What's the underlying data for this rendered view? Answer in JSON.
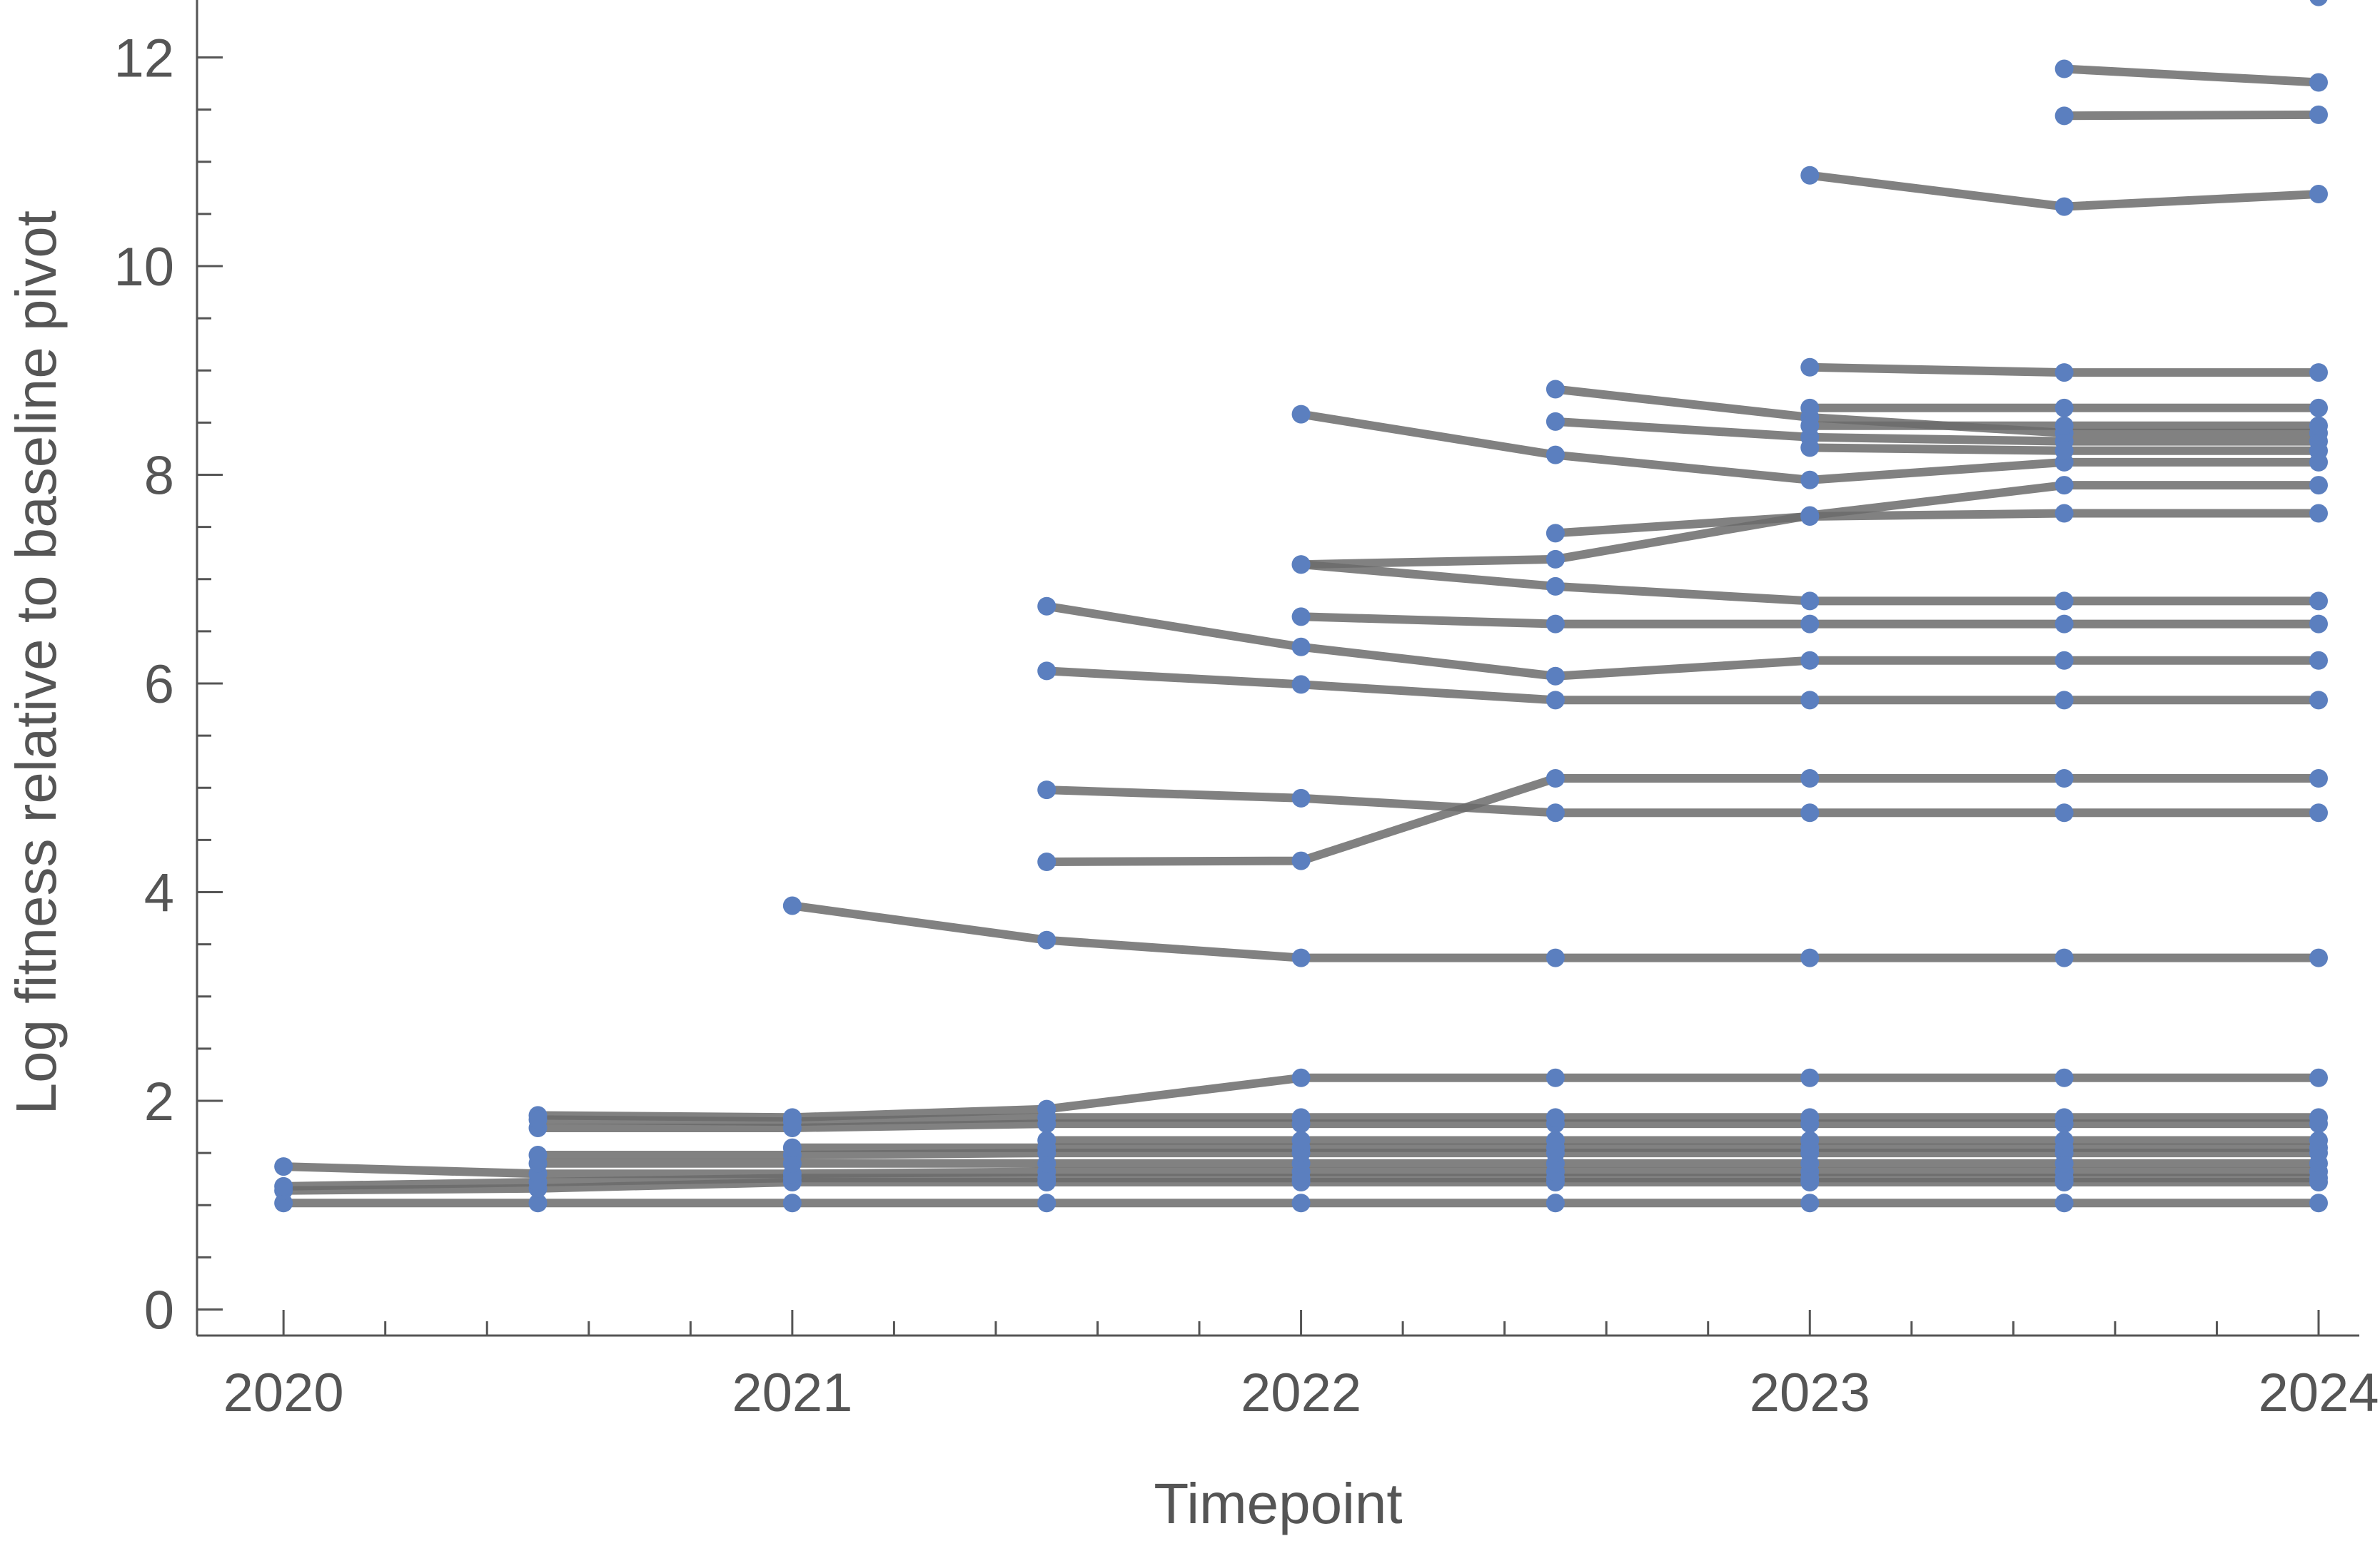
{
  "chart_data": {
    "type": "line",
    "xlabel": "Timepoint",
    "ylabel": "Log fitness relative to baseline pivot",
    "xlim": [
      2019.83,
      2024.08
    ],
    "ylim": [
      -0.25,
      12.55
    ],
    "x_ticks": [
      {
        "value": 2020,
        "label": "2020"
      },
      {
        "value": 2021,
        "label": "2021"
      },
      {
        "value": 2022,
        "label": "2022"
      },
      {
        "value": 2023,
        "label": "2023"
      },
      {
        "value": 2024,
        "label": "2024"
      }
    ],
    "y_ticks": [
      {
        "value": 0,
        "label": "0"
      },
      {
        "value": 2,
        "label": "2"
      },
      {
        "value": 4,
        "label": "4"
      },
      {
        "value": 6,
        "label": "6"
      },
      {
        "value": 8,
        "label": "8"
      },
      {
        "value": 10,
        "label": "10"
      },
      {
        "value": 12,
        "label": "12"
      }
    ],
    "grid": false,
    "line_color": "#6b6b6b",
    "point_color": "#5b7fbf",
    "series": [
      {
        "x": [
          2020,
          2020.5,
          2021,
          2021.5,
          2022,
          2022.5,
          2023,
          2023.5,
          2024
        ],
        "y": [
          1.02,
          1.02,
          1.02,
          1.02,
          1.02,
          1.02,
          1.02,
          1.02,
          1.02
        ]
      },
      {
        "x": [
          2020,
          2020.5,
          2021,
          2021.5,
          2022,
          2022.5,
          2023,
          2023.5,
          2024
        ],
        "y": [
          1.14,
          1.16,
          1.22,
          1.22,
          1.22,
          1.22,
          1.22,
          1.22,
          1.22
        ]
      },
      {
        "x": [
          2020,
          2020.5,
          2021,
          2021.5,
          2022,
          2022.5,
          2023,
          2023.5,
          2024
        ],
        "y": [
          1.18,
          1.22,
          1.26,
          1.26,
          1.26,
          1.26,
          1.26,
          1.26,
          1.26
        ]
      },
      {
        "x": [
          2020,
          2020.5,
          2021,
          2021.5,
          2022,
          2022.5,
          2023,
          2023.5,
          2024
        ],
        "y": [
          1.37,
          1.3,
          1.3,
          1.32,
          1.32,
          1.32,
          1.32,
          1.32,
          1.32
        ]
      },
      {
        "x": [
          2020.5,
          2021,
          2021.5,
          2022,
          2022.5,
          2023,
          2023.5,
          2024
        ],
        "y": [
          1.4,
          1.4,
          1.4,
          1.4,
          1.4,
          1.4,
          1.4,
          1.4
        ]
      },
      {
        "x": [
          2020.5,
          2021,
          2021.5,
          2022,
          2022.5,
          2023,
          2023.5,
          2024
        ],
        "y": [
          1.48,
          1.48,
          1.5,
          1.5,
          1.5,
          1.5,
          1.5,
          1.5
        ]
      },
      {
        "x": [
          2020.5,
          2021,
          2021.5,
          2022,
          2022.5,
          2023,
          2023.5,
          2024
        ],
        "y": [
          1.74,
          1.74,
          1.78,
          1.78,
          1.78,
          1.78,
          1.78,
          1.78
        ]
      },
      {
        "x": [
          2020.5,
          2021,
          2021.5,
          2022,
          2022.5,
          2023,
          2023.5,
          2024
        ],
        "y": [
          1.86,
          1.84,
          1.92,
          2.22,
          2.22,
          2.22,
          2.22,
          2.22
        ]
      },
      {
        "x": [
          2020.5,
          2021,
          2021.5,
          2022,
          2022.5,
          2023,
          2023.5,
          2024
        ],
        "y": [
          1.82,
          1.8,
          1.84,
          1.84,
          1.84,
          1.84,
          1.84,
          1.84
        ]
      },
      {
        "x": [
          2021,
          2021.5,
          2022,
          2022.5,
          2023,
          2023.5,
          2024
        ],
        "y": [
          1.55,
          1.55,
          1.55,
          1.55,
          1.55,
          1.55,
          1.55
        ]
      },
      {
        "x": [
          2021,
          2021.5,
          2022,
          2022.5,
          2023,
          2023.5,
          2024
        ],
        "y": [
          3.87,
          3.54,
          3.37,
          3.37,
          3.37,
          3.37,
          3.37
        ]
      },
      {
        "x": [
          2021.5,
          2022,
          2022.5,
          2023,
          2023.5,
          2024
        ],
        "y": [
          1.62,
          1.62,
          1.62,
          1.62,
          1.62,
          1.62
        ]
      },
      {
        "x": [
          2021.5,
          2022,
          2022.5,
          2023,
          2023.5,
          2024
        ],
        "y": [
          4.29,
          4.3,
          5.09,
          5.09,
          5.09,
          5.09
        ]
      },
      {
        "x": [
          2021.5,
          2022,
          2022.5,
          2023,
          2023.5,
          2024
        ],
        "y": [
          4.98,
          4.9,
          4.76,
          4.76,
          4.76,
          4.76
        ]
      },
      {
        "x": [
          2021.5,
          2022,
          2022.5,
          2023,
          2023.5,
          2024
        ],
        "y": [
          6.12,
          5.99,
          5.84,
          5.84,
          5.84,
          5.84
        ]
      },
      {
        "x": [
          2021.5,
          2022,
          2022.5,
          2023,
          2023.5,
          2024
        ],
        "y": [
          6.74,
          6.35,
          6.07,
          6.22,
          6.22,
          6.22
        ]
      },
      {
        "x": [
          2022,
          2022.5,
          2023,
          2023.5,
          2024
        ],
        "y": [
          6.64,
          6.57,
          6.57,
          6.57,
          6.57
        ]
      },
      {
        "x": [
          2022,
          2022.5,
          2023,
          2023.5,
          2024
        ],
        "y": [
          7.14,
          6.93,
          6.79,
          6.79,
          6.79
        ]
      },
      {
        "x": [
          2022,
          2022.5,
          2023,
          2023.5,
          2024
        ],
        "y": [
          7.14,
          7.19,
          7.61,
          7.9,
          7.9
        ]
      },
      {
        "x": [
          2022,
          2022.5,
          2023,
          2023.5,
          2024
        ],
        "y": [
          8.58,
          8.19,
          7.95,
          8.12,
          8.12
        ]
      },
      {
        "x": [
          2022.5,
          2023,
          2023.5,
          2024
        ],
        "y": [
          7.44,
          7.6,
          7.63,
          7.63
        ]
      },
      {
        "x": [
          2022.5,
          2023,
          2023.5,
          2024
        ],
        "y": [
          8.51,
          8.36,
          8.32,
          8.32
        ]
      },
      {
        "x": [
          2022.5,
          2023,
          2023.5,
          2024
        ],
        "y": [
          8.82,
          8.55,
          8.4,
          8.4
        ]
      },
      {
        "x": [
          2023,
          2023.5,
          2024
        ],
        "y": [
          8.26,
          8.23,
          8.23
        ]
      },
      {
        "x": [
          2023,
          2023.5,
          2024
        ],
        "y": [
          8.47,
          8.47,
          8.47
        ]
      },
      {
        "x": [
          2023,
          2023.5,
          2024
        ],
        "y": [
          8.64,
          8.64,
          8.64
        ]
      },
      {
        "x": [
          2023,
          2023.5,
          2024
        ],
        "y": [
          9.03,
          8.98,
          8.98
        ]
      },
      {
        "x": [
          2023,
          2023.5,
          2024
        ],
        "y": [
          10.87,
          10.57,
          10.69
        ]
      },
      {
        "x": [
          2023.5,
          2024
        ],
        "y": [
          11.44,
          11.45
        ]
      },
      {
        "x": [
          2023.5,
          2024
        ],
        "y": [
          11.89,
          11.76
        ]
      },
      {
        "x": [
          2024
        ],
        "y": [
          12.58
        ]
      }
    ]
  }
}
